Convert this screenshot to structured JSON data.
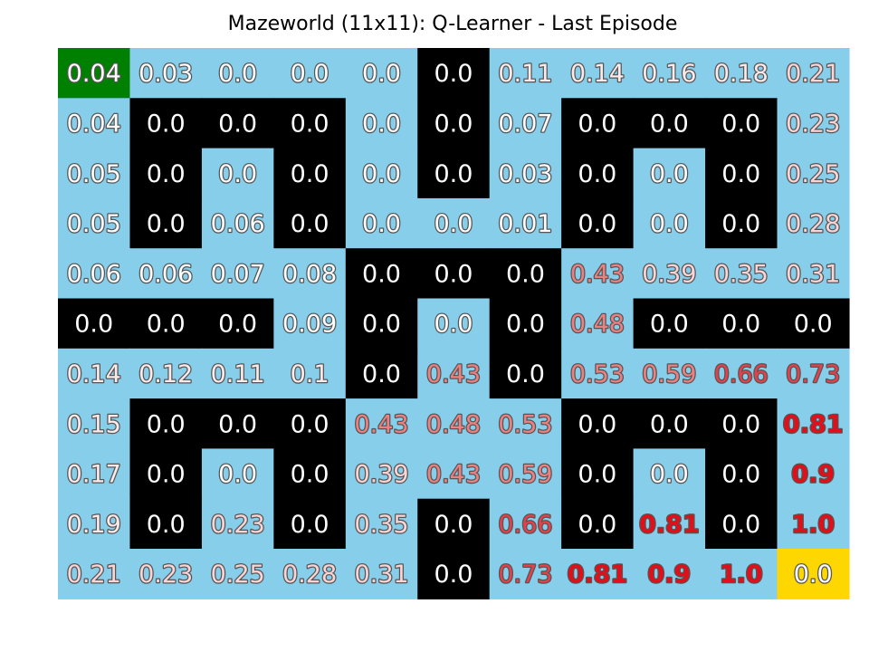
{
  "chart_data": {
    "type": "heatmap",
    "title": "Mazeworld (11x11): Q-Learner - Last Episode",
    "rows": 11,
    "cols": 11,
    "colors": {
      "open": "#87ceeb",
      "wall": "#000000",
      "start": "#008000",
      "goal": "#ffd700",
      "wall_text": "#ffffff",
      "open_text_low": "#ffffff",
      "open_text_mid": "#f08080",
      "open_text_high": "#e0101a",
      "open_text_stroke": "#555555"
    },
    "cell_types": [
      [
        "start",
        "open",
        "open",
        "open",
        "open",
        "wall",
        "open",
        "open",
        "open",
        "open",
        "open"
      ],
      [
        "open",
        "wall",
        "wall",
        "wall",
        "open",
        "wall",
        "open",
        "wall",
        "wall",
        "wall",
        "open"
      ],
      [
        "open",
        "wall",
        "open",
        "wall",
        "open",
        "wall",
        "open",
        "wall",
        "open",
        "wall",
        "open"
      ],
      [
        "open",
        "wall",
        "open",
        "wall",
        "open",
        "open",
        "open",
        "wall",
        "open",
        "wall",
        "open"
      ],
      [
        "open",
        "open",
        "open",
        "open",
        "wall",
        "wall",
        "wall",
        "open",
        "open",
        "open",
        "open"
      ],
      [
        "wall",
        "wall",
        "wall",
        "open",
        "wall",
        "open",
        "wall",
        "open",
        "wall",
        "wall",
        "wall"
      ],
      [
        "open",
        "open",
        "open",
        "open",
        "wall",
        "open",
        "wall",
        "open",
        "open",
        "open",
        "open"
      ],
      [
        "open",
        "wall",
        "wall",
        "wall",
        "open",
        "open",
        "open",
        "wall",
        "wall",
        "wall",
        "open"
      ],
      [
        "open",
        "wall",
        "open",
        "wall",
        "open",
        "open",
        "open",
        "wall",
        "open",
        "wall",
        "open"
      ],
      [
        "open",
        "wall",
        "open",
        "wall",
        "open",
        "wall",
        "open",
        "wall",
        "open",
        "wall",
        "open"
      ],
      [
        "open",
        "open",
        "open",
        "open",
        "open",
        "wall",
        "open",
        "open",
        "open",
        "open",
        "goal"
      ]
    ],
    "values": [
      [
        "0.04",
        "0.03",
        "0.0",
        "0.0",
        "0.0",
        "0.0",
        "0.11",
        "0.14",
        "0.16",
        "0.18",
        "0.21"
      ],
      [
        "0.04",
        "0.0",
        "0.0",
        "0.0",
        "0.0",
        "0.0",
        "0.07",
        "0.0",
        "0.0",
        "0.0",
        "0.23"
      ],
      [
        "0.05",
        "0.0",
        "0.0",
        "0.0",
        "0.0",
        "0.0",
        "0.03",
        "0.0",
        "0.0",
        "0.0",
        "0.25"
      ],
      [
        "0.05",
        "0.0",
        "0.06",
        "0.0",
        "0.0",
        "0.0",
        "0.01",
        "0.0",
        "0.0",
        "0.0",
        "0.28"
      ],
      [
        "0.06",
        "0.06",
        "0.07",
        "0.08",
        "0.0",
        "0.0",
        "0.0",
        "0.43",
        "0.39",
        "0.35",
        "0.31"
      ],
      [
        "0.0",
        "0.0",
        "0.0",
        "0.09",
        "0.0",
        "0.0",
        "0.0",
        "0.48",
        "0.0",
        "0.0",
        "0.0"
      ],
      [
        "0.14",
        "0.12",
        "0.11",
        "0.1",
        "0.0",
        "0.43",
        "0.0",
        "0.53",
        "0.59",
        "0.66",
        "0.73"
      ],
      [
        "0.15",
        "0.0",
        "0.0",
        "0.0",
        "0.43",
        "0.48",
        "0.53",
        "0.0",
        "0.0",
        "0.0",
        "0.81"
      ],
      [
        "0.17",
        "0.0",
        "0.0",
        "0.0",
        "0.39",
        "0.43",
        "0.59",
        "0.0",
        "0.0",
        "0.0",
        "0.9"
      ],
      [
        "0.19",
        "0.0",
        "0.23",
        "0.0",
        "0.35",
        "0.0",
        "0.66",
        "0.0",
        "0.81",
        "0.0",
        "1.0"
      ],
      [
        "0.21",
        "0.23",
        "0.25",
        "0.28",
        "0.31",
        "0.0",
        "0.73",
        "0.81",
        "0.9",
        "1.0",
        "0.0"
      ]
    ]
  }
}
